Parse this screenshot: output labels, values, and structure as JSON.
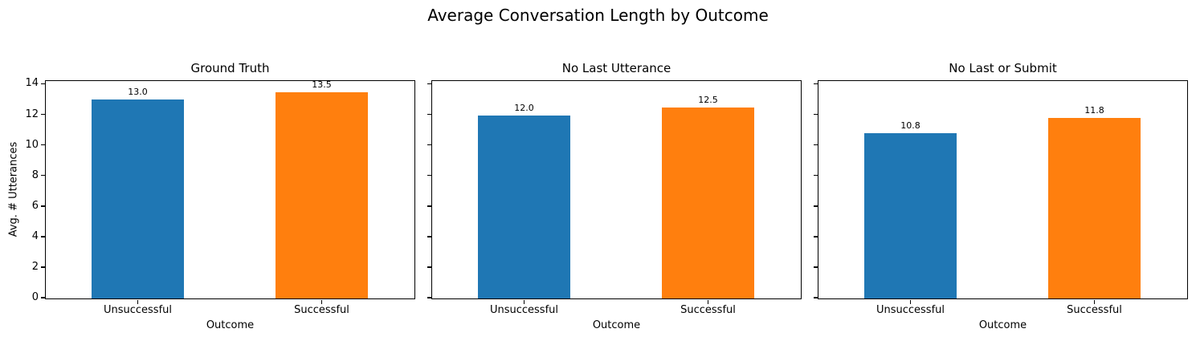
{
  "figure": {
    "title": "Average Conversation Length by Outcome",
    "background": "#ffffff",
    "text_color": "#000000"
  },
  "chart_data": [
    {
      "type": "bar",
      "title": "Ground Truth",
      "xlabel": "Outcome",
      "ylabel": "Avg. # Utterances",
      "categories": [
        "Unsuccessful",
        "Successful"
      ],
      "values": [
        13.0,
        13.5
      ],
      "bar_labels": [
        "13.0",
        "13.5"
      ],
      "bar_colors": [
        "#1f77b4",
        "#ff7f0e"
      ],
      "ylim": [
        0,
        14.18
      ],
      "yticks": [
        0,
        2,
        4,
        6,
        8,
        10,
        12,
        14
      ],
      "show_ytick_labels": true,
      "grid": false,
      "legend": "none"
    },
    {
      "type": "bar",
      "title": "No Last Utterance",
      "xlabel": "Outcome",
      "ylabel": "",
      "categories": [
        "Unsuccessful",
        "Successful"
      ],
      "values": [
        12.0,
        12.5
      ],
      "bar_labels": [
        "12.0",
        "12.5"
      ],
      "bar_colors": [
        "#1f77b4",
        "#ff7f0e"
      ],
      "ylim": [
        0,
        14.18
      ],
      "yticks": [
        0,
        2,
        4,
        6,
        8,
        10,
        12,
        14
      ],
      "show_ytick_labels": false,
      "grid": false,
      "legend": "none"
    },
    {
      "type": "bar",
      "title": "No Last or Submit",
      "xlabel": "Outcome",
      "ylabel": "",
      "categories": [
        "Unsuccessful",
        "Successful"
      ],
      "values": [
        10.8,
        11.8
      ],
      "bar_labels": [
        "10.8",
        "11.8"
      ],
      "bar_colors": [
        "#1f77b4",
        "#ff7f0e"
      ],
      "ylim": [
        0,
        14.18
      ],
      "yticks": [
        0,
        2,
        4,
        6,
        8,
        10,
        12,
        14
      ],
      "show_ytick_labels": false,
      "grid": false,
      "legend": "none"
    }
  ]
}
